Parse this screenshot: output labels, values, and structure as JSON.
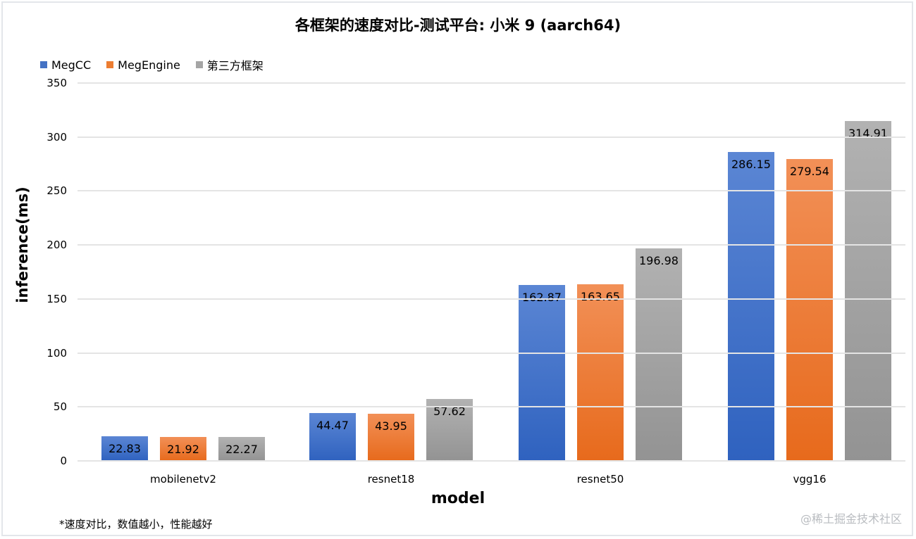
{
  "chart_data": {
    "type": "bar",
    "title": "各框架的速度对比-测试平台: 小米 9 (aarch64)",
    "xlabel": "model",
    "ylabel": "inference(ms)",
    "categories": [
      "mobilenetv2",
      "resnet18",
      "resnet50",
      "vgg16"
    ],
    "series": [
      {
        "name": "MegCC",
        "color": "#4472c4",
        "values": [
          22.83,
          44.47,
          162.87,
          286.15
        ],
        "labels": [
          "22.83",
          "44.47",
          "162.87",
          "286.15"
        ]
      },
      {
        "name": "MegEngine",
        "color": "#ed7d31",
        "values": [
          21.92,
          43.95,
          163.65,
          279.54
        ],
        "labels": [
          "21.92",
          "43.95",
          "163.65",
          "279.54"
        ]
      },
      {
        "name": "第三方框架",
        "color": "#a5a5a5",
        "values": [
          22.27,
          57.62,
          196.98,
          314.91
        ],
        "labels": [
          "22.27",
          "57.62",
          "196.98",
          "314.91"
        ]
      }
    ],
    "ylim": [
      0,
      350
    ],
    "yticks": [
      "0",
      "50",
      "100",
      "150",
      "200",
      "250",
      "300",
      "350"
    ],
    "grid": true,
    "legend_position": "top-left",
    "annotations": [
      "*速度对比，数值越小，性能越好"
    ]
  },
  "footnote": "*速度对比，数值越小，性能越好",
  "watermark": "@稀土掘金技术社区"
}
